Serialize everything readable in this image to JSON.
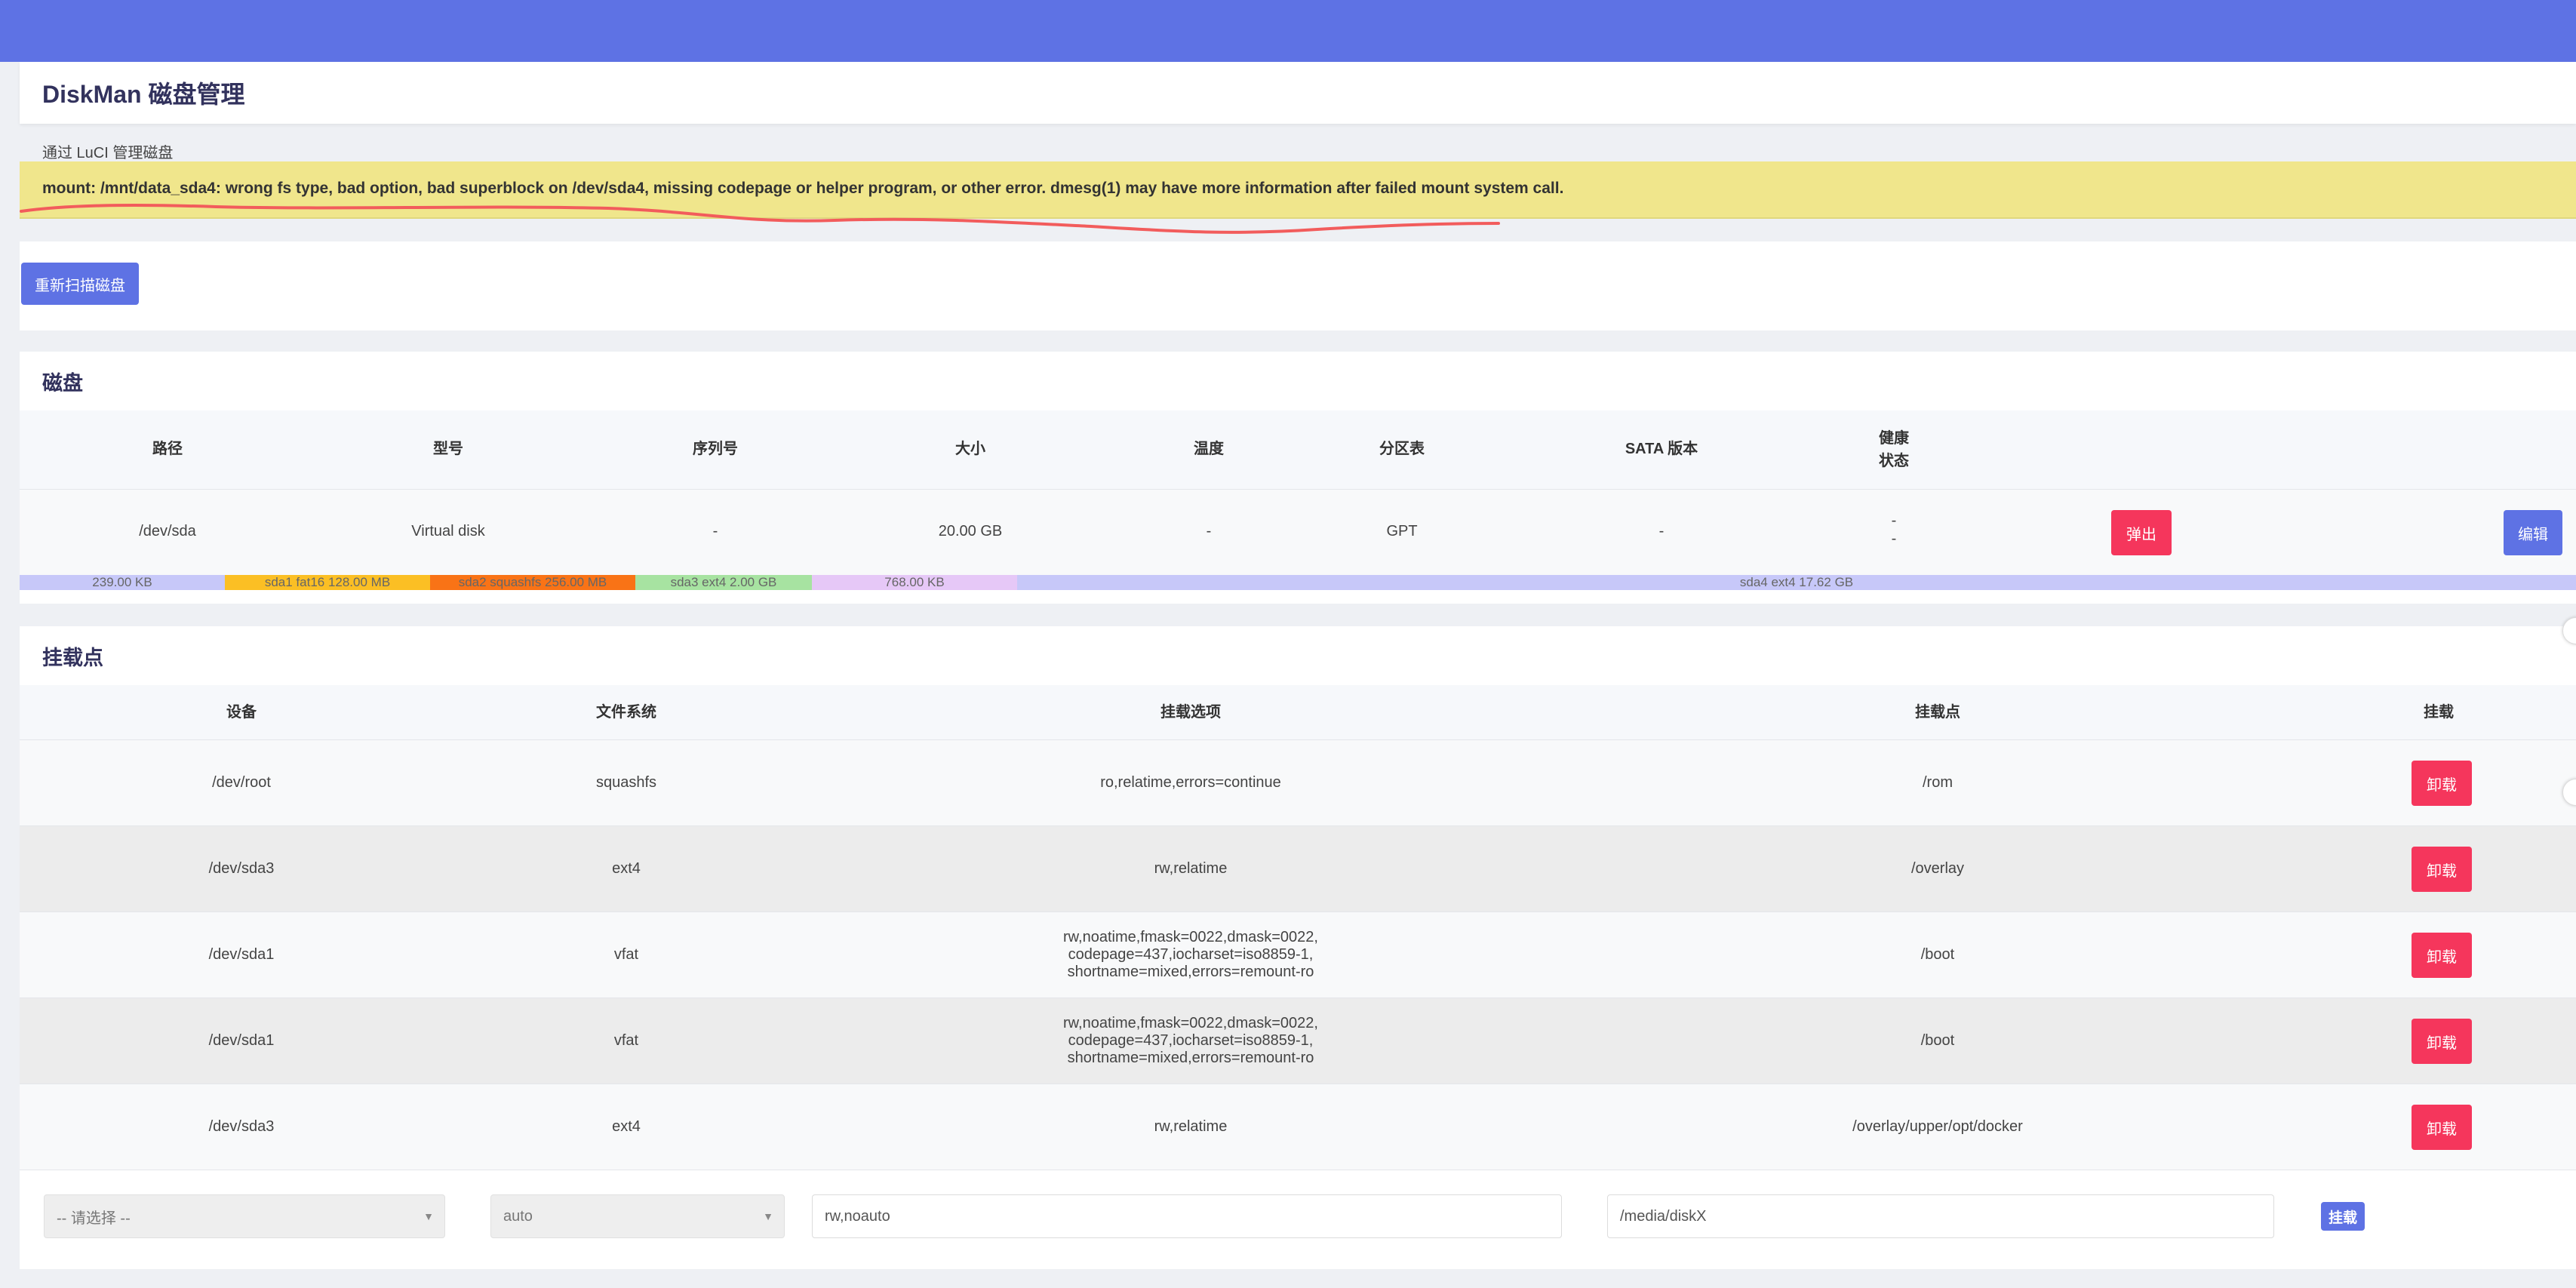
{
  "header": {
    "title": "DiskMan 磁盘管理",
    "description": "通过 LuCI 管理磁盘"
  },
  "alert": {
    "message": "mount: /mnt/data_sda4: wrong fs type, bad option, bad superblock on /dev/sda4, missing codepage or helper program, or other error. dmesg(1) may have more information after failed mount system call."
  },
  "rescan": {
    "label": "重新扫描磁盘"
  },
  "disks": {
    "title": "磁盘",
    "columns": [
      "路径",
      "型号",
      "序列号",
      "大小",
      "温度",
      "分区表",
      "SATA 版本",
      "健康",
      "状态"
    ],
    "rows": [
      {
        "path": "/dev/sda",
        "model": "Virtual disk",
        "serial": "-",
        "size": "20.00 GB",
        "temp": "-",
        "table": "GPT",
        "sata": "-",
        "health": "-",
        "status": "-",
        "eject_label": "弹出",
        "edit_label": "编辑"
      }
    ],
    "partitions": [
      {
        "label": "239.00 KB",
        "color": "#c7c8f9"
      },
      {
        "label": "sda1 fat16 128.00 MB",
        "color": "#fbbf24"
      },
      {
        "label": "sda2 squashfs 256.00 MB",
        "color": "#f97316"
      },
      {
        "label": "sda3 ext4 2.00 GB",
        "color": "#a7e3a1"
      },
      {
        "label": "768.00 KB",
        "color": "#e6c8f7"
      },
      {
        "label": "sda4 ext4 17.62 GB",
        "color": "#c7c8f9"
      }
    ]
  },
  "mounts": {
    "title": "挂载点",
    "columns": [
      "设备",
      "文件系统",
      "挂载选项",
      "挂载点",
      "挂载"
    ],
    "rows": [
      {
        "device": "/dev/root",
        "fs": "squashfs",
        "options": [
          "ro,relatime,errors=continue"
        ],
        "point": "/rom",
        "action": "卸载"
      },
      {
        "device": "/dev/sda3",
        "fs": "ext4",
        "options": [
          "rw,relatime"
        ],
        "point": "/overlay",
        "action": "卸载"
      },
      {
        "device": "/dev/sda1",
        "fs": "vfat",
        "options": [
          "rw,noatime,fmask=0022,dmask=0022,",
          "codepage=437,iocharset=iso8859-1,",
          "shortname=mixed,errors=remount-ro"
        ],
        "point": "/boot",
        "action": "卸载"
      },
      {
        "device": "/dev/sda1",
        "fs": "vfat",
        "options": [
          "rw,noatime,fmask=0022,dmask=0022,",
          "codepage=437,iocharset=iso8859-1,",
          "shortname=mixed,errors=remount-ro"
        ],
        "point": "/boot",
        "action": "卸载"
      },
      {
        "device": "/dev/sda3",
        "fs": "ext4",
        "options": [
          "rw,relatime"
        ],
        "point": "/overlay/upper/opt/docker",
        "action": "卸载"
      }
    ],
    "form": {
      "device_select": "-- 请选择 --",
      "fs_select": "auto",
      "options_value": "rw,noauto",
      "point_value": "/media/diskX",
      "mount_label": "挂载"
    }
  }
}
